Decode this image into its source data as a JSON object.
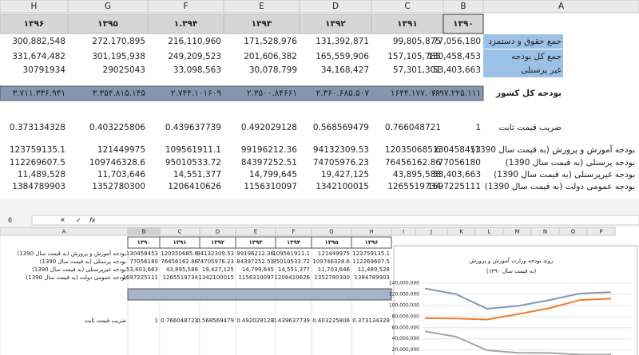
{
  "top_sheet": {
    "columns": [
      "H",
      "G",
      "F",
      "E",
      "D",
      "C",
      "B",
      "A"
    ],
    "years": [
      "۱۳۹۶",
      "۱۳۹۵",
      "۱.۳۹۴",
      "۱۳۹۳",
      "۱۳۹۲",
      "۱۳۹۱",
      "۱۳۹۰"
    ],
    "rows": [
      {
        "label": "جمع حقوق و دستمزد",
        "cells": [
          "300,882,548",
          "272,170,895",
          "216,110,960",
          "171,528,976",
          "131,392,871",
          "99,805,875",
          "77,056,180"
        ]
      },
      {
        "label": "جمع کل بودجه",
        "cells": [
          "331,674,482",
          "301,195,938",
          "249,209,523",
          "201,606,382",
          "165,559,906",
          "157,105,785",
          "130,458,453"
        ]
      },
      {
        "label": "غیر پرسنلی",
        "cells": [
          "30791934",
          "29025043",
          "33,098,563",
          "30,078,799",
          "34,168,427",
          "57,301,301",
          "53,403,663"
        ]
      },
      {
        "label": "بودجه کل کشور",
        "cells": [
          "۳.۷۱۱.۳۳۶.۹۴۱",
          "۳.۳۵۴.۸۱۵.۱۴۵",
          "۲.۷۴۴.۱۰۱۶۰۹",
          "۲.۳۵۰۰.۸۴۶۶۱",
          "۲.۳۶۰.۶۸۵.۵۰۷",
          "۱۶۴۴.۱۷۷.۰۶۱",
          "۱۶۹۷.۲۲۵.۱۱۱"
        ]
      },
      {
        "label": "ضریب قیمت ثابت",
        "cells": [
          "0.373134328",
          "0.403225806",
          "0.439637739",
          "0.492029128",
          "0.568569479",
          "0.766048721",
          "1"
        ]
      },
      {
        "label": "بودجه آموزش و پرورش (به قیمت سال 1390)",
        "cells": [
          "123759135.1",
          "121449975",
          "109561911.1",
          "99196212.36",
          "94132309.53",
          "120350685.6",
          "130458453"
        ]
      },
      {
        "label": "بودجه پرسنلی (به قیمت سال 1390)",
        "cells": [
          "112269607.5",
          "109746328.6",
          "95010533.72",
          "84397252.51",
          "74705976.23",
          "76456162.86",
          "77056180"
        ]
      },
      {
        "label": "بودجه غیرپرسنلی (به قیمت سال 1390)",
        "cells": [
          "11,489,528",
          "11,703,646",
          "14,551,377",
          "14,799,645",
          "19,427,125",
          "43,895,588",
          "53,403,663"
        ]
      },
      {
        "label": "بودجه عمومی دولت (به قیمت سال 1390)",
        "cells": [
          "1384789903",
          "1352780300",
          "1206410626",
          "1156310097",
          "1342100015",
          "1265519734",
          "1697225111"
        ]
      }
    ]
  },
  "toolbar": {
    "name_box": "6",
    "formula": "fx"
  },
  "bottom_sheet": {
    "columns": [
      "A",
      "B",
      "C",
      "D",
      "E",
      "F",
      "G",
      "H",
      "I",
      "J",
      "K",
      "L",
      "M",
      "N",
      "O",
      "P"
    ],
    "years": [
      "۱۳۹۰",
      "۱۳۹۱",
      "۱۳۹۲",
      "۱۳۹۳",
      "۱۳۹۴",
      "۱۳۹۵",
      "۱۳۹۶"
    ],
    "rows": [
      {
        "label": "بودجه آموزش و پرورش (به قیمت سال 1390)",
        "cells": [
          "130458453",
          "120350685.6",
          "94132309.53",
          "99196212.36",
          "109561911.1",
          "121449975",
          "123759135.1"
        ]
      },
      {
        "label": "بودجه پرسنلی (به قیمت سال 1390)",
        "cells": [
          "77056180",
          "76456162.86",
          "74705976.23",
          "84397252.51",
          "95010533.72",
          "109746328.6",
          "112269607.5"
        ]
      },
      {
        "label": "بودجه غیرپرسنلی (به قیمت سال 1390)",
        "cells": [
          "53,403,663",
          "43,895,588",
          "19,427,125",
          "14,799,645",
          "14,551,377",
          "11,703,646",
          "11,489,528"
        ]
      },
      {
        "label": "بودجه عمومی دولت (به قیمت سال 1390)",
        "cells": [
          "1697225111",
          "1265519734",
          "1342100015",
          "1156310097",
          "1206410626",
          "1352780300",
          "1384789903"
        ]
      },
      {
        "label": "ضریب قیمت ثابت",
        "cells": [
          "1",
          "0.766048721",
          "0.568569479",
          "0.492029128",
          "0.439637739",
          "0.403225806",
          "0.373134328"
        ]
      }
    ]
  },
  "chart_data": {
    "type": "line",
    "title": "روند بودجه وزارت آموزش و پرورش",
    "subtitle": "(به قیمت سال ۱۳۹۰)",
    "ylim": [
      0,
      140000000
    ],
    "yticks": [
      {
        "value": 20000000,
        "label": "20,000,000"
      },
      {
        "value": 40000000,
        "label": "40,000,000"
      },
      {
        "value": 60000000,
        "label": "60,000,000"
      },
      {
        "value": 80000000,
        "label": "80,000,000"
      },
      {
        "value": 100000000,
        "label": "100,000,000"
      },
      {
        "value": 120000000,
        "label": "120,000,000"
      },
      {
        "value": 140000000,
        "label": "140,000,000"
      }
    ],
    "grid": true,
    "series": [
      {
        "color": "#8497b0",
        "values": [
          130458453,
          120350685.6,
          94132309.53,
          99196212.36,
          109561911.1,
          121449975,
          123759135.1
        ]
      },
      {
        "color": "#ed7d31",
        "values": [
          77056180,
          76456162.86,
          74705976.23,
          84397252.51,
          95010533.72,
          109746328.6,
          112269607.5
        ]
      },
      {
        "color": "#a5a5a5",
        "values": [
          53403663,
          43895588,
          19427125,
          14799645,
          14551377,
          11703646,
          11489528
        ]
      }
    ]
  }
}
